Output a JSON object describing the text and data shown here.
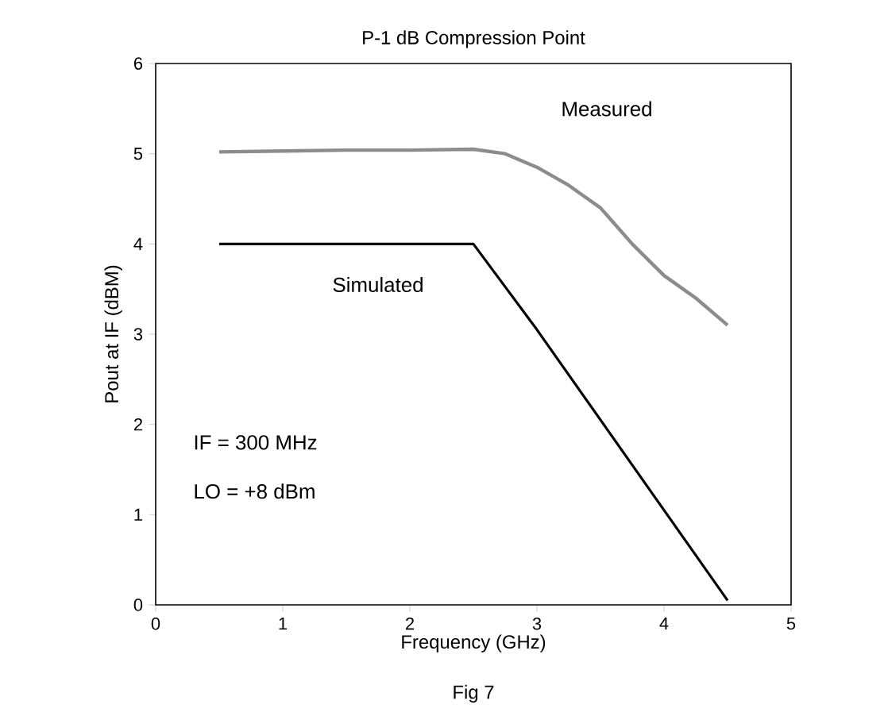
{
  "chart_data": {
    "type": "line",
    "title": "P-1 dB Compression Point",
    "xlabel": "Frequency (GHz)",
    "ylabel": "Pout at IF (dBM)",
    "series": [
      {
        "name": "Measured",
        "color": "#8c8c8c",
        "x": [
          0.5,
          1,
          1.5,
          2,
          2.5,
          2.75,
          3,
          3.25,
          3.5,
          3.75,
          4,
          4.25,
          4.5
        ],
        "values": [
          5.02,
          5.03,
          5.04,
          5.04,
          5.05,
          5.0,
          4.85,
          4.65,
          4.4,
          4.0,
          3.65,
          3.4,
          3.1
        ]
      },
      {
        "name": "Simulated",
        "color": "#000000",
        "x": [
          0.5,
          2.5,
          3,
          4.5
        ],
        "values": [
          4,
          4,
          3.05,
          0.05
        ]
      }
    ],
    "xlim": [
      0,
      5
    ],
    "ylim": [
      0,
      6
    ],
    "xticks": [
      0,
      1,
      2,
      3,
      4,
      5
    ],
    "yticks": [
      0,
      1,
      2,
      3,
      4,
      5,
      6
    ],
    "grid": false,
    "marker": "none",
    "line_style": "solid",
    "annotations": [
      "IF = 300 MHz",
      "LO = +8 dBm",
      "Fig 7"
    ]
  }
}
